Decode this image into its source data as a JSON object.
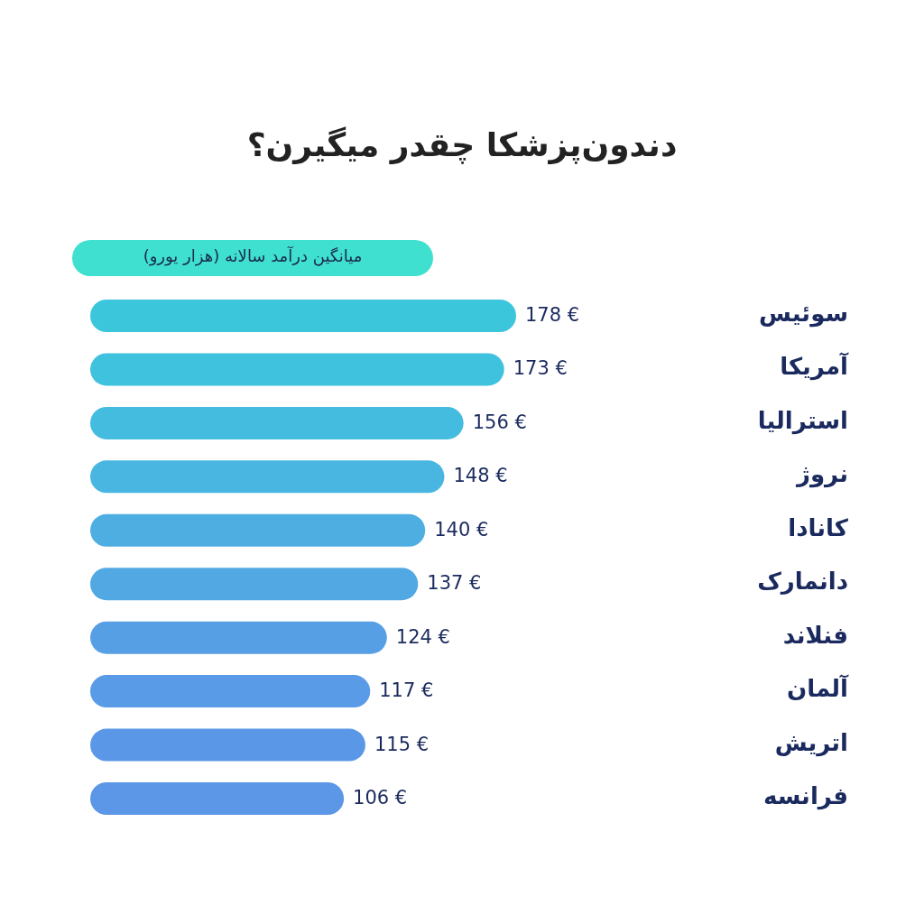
{
  "chart_data": {
    "type": "bar",
    "orientation": "horizontal",
    "title": "دندون‌پزشکا چقدر میگیرن؟",
    "subtitle": "میانگین درآمد سالانه (هزار یورو)",
    "categories": [
      "سوئیس",
      "آمریکا",
      "استرالیا",
      "نروژ",
      "کانادا",
      "دانمارک",
      "فنلاند",
      "آلمان",
      "اتریش",
      "فرانسه"
    ],
    "values": [
      178,
      173,
      156,
      148,
      140,
      137,
      124,
      117,
      115,
      106
    ],
    "value_labels": [
      "178 €",
      "173 €",
      "156 €",
      "148 €",
      "140 €",
      "137 €",
      "124 €",
      "117 €",
      "115 €",
      "106 €"
    ],
    "colors": [
      "#3cc6dc",
      "#3fc2de",
      "#44bcdf",
      "#48b6e0",
      "#4eaee2",
      "#52a8e3",
      "#579fe5",
      "#599be6",
      "#5a98e7",
      "#5b96e7"
    ]
  }
}
